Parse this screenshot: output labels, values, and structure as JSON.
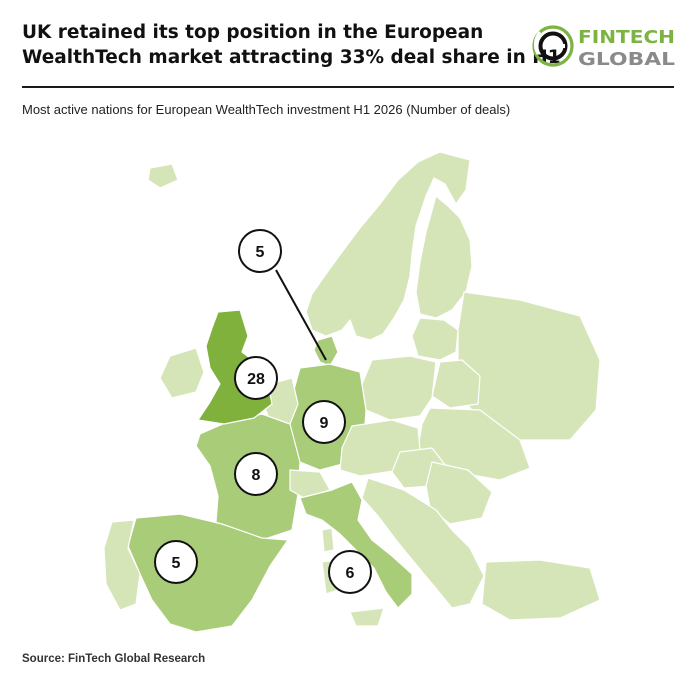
{
  "header": {
    "title_line1": "UK retained its top position in the European",
    "title_line2": "WealthTech market attracting 33% deal share in H1",
    "subtitle": "Most active nations for European WealthTech investment H1 2026 (Number of deals)"
  },
  "logo": {
    "word1": "FINTECH",
    "word2": "GLOBAL",
    "icon": "ring-logo-icon"
  },
  "footer": {
    "source": "Source: FinTech Global Research"
  },
  "colors": {
    "land": "#d5e5b8",
    "land_medium": "#a9cc78",
    "land_dark": "#7fb13c",
    "border": "#ffffff",
    "callout_stroke": "#111111",
    "logo_green": "#7cb342",
    "logo_grey": "#8a8a8a"
  },
  "chart_data": {
    "type": "choropleth-map",
    "title": "Most active nations for European WealthTech investment H1 2026 (Number of deals)",
    "metric": "Number of deals",
    "values": [
      {
        "id": "uk",
        "value": 28
      },
      {
        "id": "de",
        "value": 9
      },
      {
        "id": "fr",
        "value": 8
      },
      {
        "id": "it",
        "value": 6
      },
      {
        "id": "es",
        "value": 5
      },
      {
        "id": "dk",
        "value": 5
      }
    ]
  }
}
